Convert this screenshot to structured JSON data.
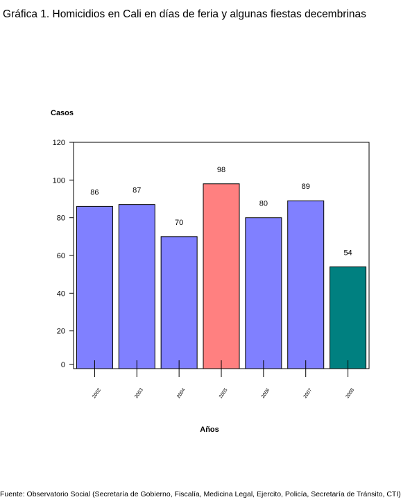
{
  "title": "Gráfica 1. Homicidios en Cali en días de feria y algunas fiestas decembrinas",
  "source": "Fuente: Observatorio Social (Secretaría de Gobierno, Fiscalía, Medicina Legal, Ejercito, Policía, Secretaría de Tránsito, CTI)",
  "chart_data": {
    "type": "bar",
    "ylabel": "Casos",
    "xlabel": "Años",
    "categories": [
      "2002",
      "2003",
      "2004",
      "2005",
      "2006",
      "2007",
      "2008"
    ],
    "values": [
      86,
      87,
      70,
      98,
      80,
      89,
      54
    ],
    "colors": [
      "#8080ff",
      "#8080ff",
      "#8080ff",
      "#ff8080",
      "#8080ff",
      "#8080ff",
      "#008080"
    ],
    "ylim": [
      0,
      120
    ],
    "yticks": [
      0,
      20,
      40,
      60,
      80,
      100,
      120
    ],
    "data_labels": [
      "86",
      "87",
      "70",
      "98",
      "80",
      "89",
      "54"
    ],
    "grid": false,
    "legend": "none"
  }
}
